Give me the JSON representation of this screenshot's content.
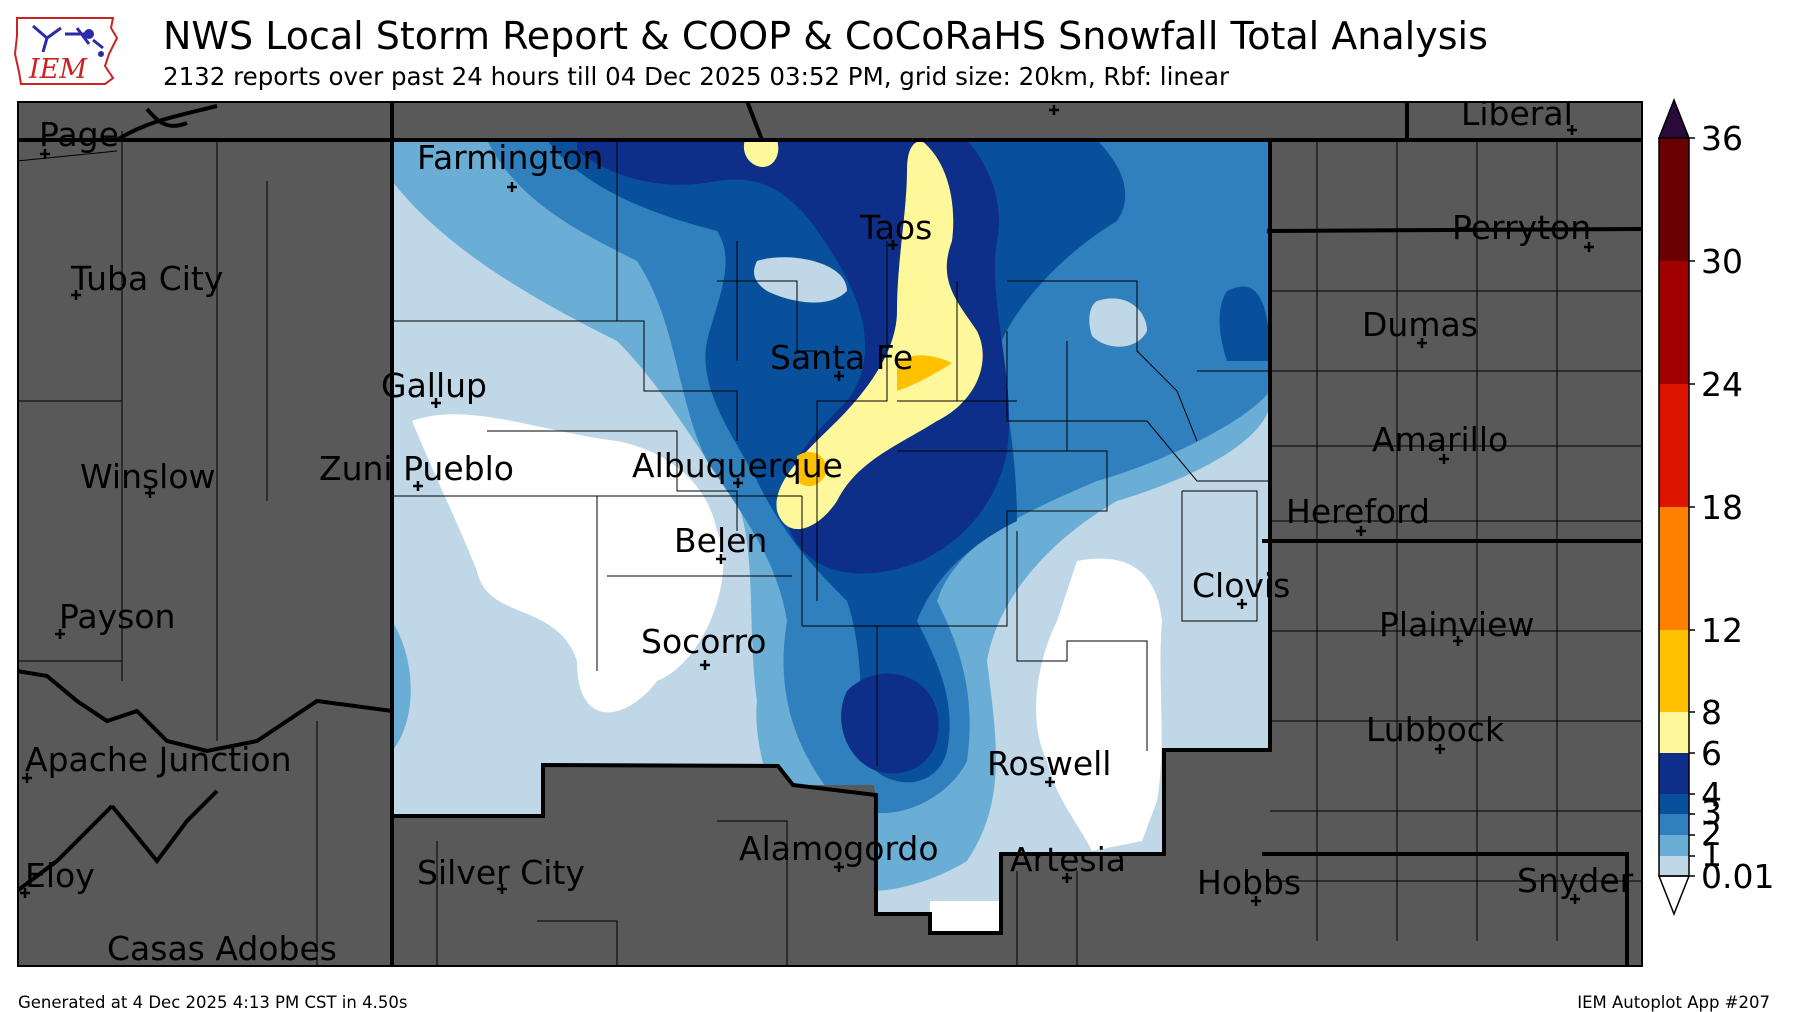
{
  "header": {
    "title": "NWS Local Storm Report & COOP & CoCoRaHS Snowfall Total Analysis",
    "subtitle": "2132 reports over past 24 hours till 04 Dec 2025 03:52 PM, grid size: 20km, Rbf: linear"
  },
  "logo": {
    "text": "IEM",
    "icon": "iowa-state-outline-icon",
    "color": "#cc2222"
  },
  "footer": {
    "generated": "Generated at 4 Dec 2025 4:13 PM CST in 4.50s",
    "app": "IEM Autoplot App #207"
  },
  "cities": [
    "Page",
    "Farmington",
    "Tuba City",
    "Taos",
    "Liberal",
    "Perryton",
    "Dumas",
    "Gallup",
    "Santa Fe",
    "Amarillo",
    "Winslow",
    "Zuni Pueblo",
    "Albuquerque",
    "Hereford",
    "Belen",
    "Clovis",
    "Payson",
    "Socorro",
    "Plainview",
    "Lubbock",
    "Apache Junction",
    "Roswell",
    "Alamogordo",
    "Artesia",
    "Silver City",
    "Eloy",
    "Hobbs",
    "Snyder",
    "Casas Adobes"
  ],
  "colorbar": {
    "ticks": [
      "36",
      "30",
      "24",
      "18",
      "12",
      "8",
      "6",
      "4",
      "3",
      "2",
      "1",
      "0.01"
    ],
    "colors": [
      "#bfd7e6",
      "#6aaed6",
      "#3080bd",
      "#08509b",
      "#0d2f8a",
      "#fff89a",
      "#ffc000",
      "#ff8000",
      "#dd1500",
      "#a00000",
      "#6b0000"
    ],
    "over_color": "#2a0a3a",
    "under_color": "#ffffff"
  },
  "map_colors": {
    "land": "#595959",
    "border": "#000000",
    "county": "#000000"
  }
}
